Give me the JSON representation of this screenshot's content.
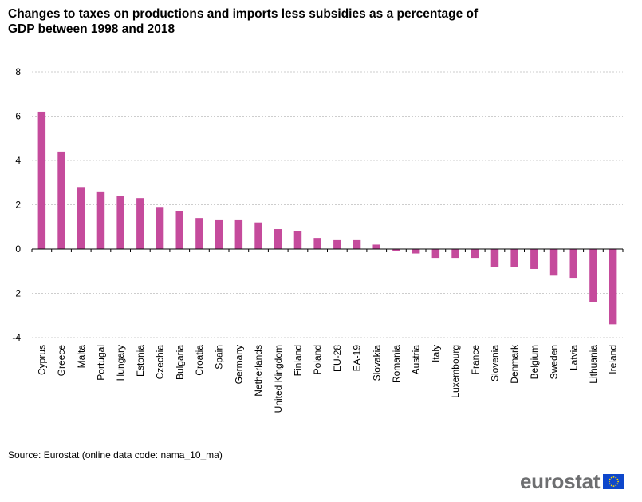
{
  "title_line1": "Changes to taxes on productions and imports less subsidies as a percentage of",
  "title_line2": "GDP between 1998 and 2018",
  "source": "Source: Eurostat (online data code: nama_10_ma)",
  "logo_text": "eurostat",
  "logo_icon": "eu-flag-icon",
  "colors": {
    "bar": "#c54b9c",
    "grid": "#bdbdbd",
    "axis": "#000000",
    "flag_blue": "#0e47cb",
    "flag_star": "#ffdd00",
    "logo_text": "#6d6e70"
  },
  "chart_data": {
    "type": "bar",
    "categories": [
      "Cyprus",
      "Greece",
      "Malta",
      "Portugal",
      "Hungary",
      "Estonia",
      "Czechia",
      "Bulgaria",
      "Croatia",
      "Spain",
      "Germany",
      "Netherlands",
      "United Kingdom",
      "Finland",
      "Poland",
      "EU-28",
      "EA-19",
      "Slovakia",
      "Romania",
      "Austria",
      "Italy",
      "Luxembourg",
      "France",
      "Slovenia",
      "Denmark",
      "Belgium",
      "Sweden",
      "Latvia",
      "Lithuania",
      "Ireland"
    ],
    "values": [
      6.2,
      4.4,
      2.8,
      2.6,
      2.4,
      2.3,
      1.9,
      1.7,
      1.4,
      1.3,
      1.3,
      1.2,
      0.9,
      0.8,
      0.5,
      0.4,
      0.4,
      0.2,
      -0.1,
      -0.2,
      -0.4,
      -0.4,
      -0.4,
      -0.8,
      -0.8,
      -0.9,
      -1.2,
      -1.3,
      -2.4,
      -3.4
    ],
    "ylim": [
      -4,
      8
    ],
    "yticks": [
      -4,
      -2,
      0,
      2,
      4,
      6,
      8
    ],
    "grid": true,
    "legend": "none"
  }
}
